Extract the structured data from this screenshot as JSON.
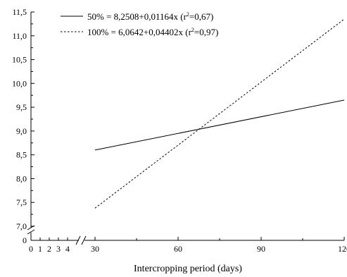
{
  "chart_data": {
    "type": "line",
    "xlabel": "Intercropping period (days)",
    "ylabel": "",
    "y_range_main": [
      7.0,
      11.5
    ],
    "y_range_broken": [
      0,
      0
    ],
    "x_range_main": [
      30,
      120
    ],
    "x_range_broken": [
      0,
      4
    ],
    "y_ticks_major": [
      "11,5",
      "11,0",
      "10,5",
      "10,0",
      "9,5",
      "9,0",
      "8,5",
      "8,0",
      "7,5",
      "7,0",
      "0"
    ],
    "y_tick_values": [
      11.5,
      11.0,
      10.5,
      10.0,
      9.5,
      9.0,
      8.5,
      8.0,
      7.5,
      7.0
    ],
    "x_ticks_broken": [
      "0",
      "1",
      "2",
      "3",
      "4"
    ],
    "x_ticks_main": [
      "30",
      "60",
      "90",
      "120"
    ],
    "x_tick_values_main": [
      30,
      60,
      90,
      120
    ],
    "grid": false,
    "legend_position": "top-left",
    "series": [
      {
        "name": "50%",
        "legend_main": "50% = 8,2508+0,01164x (r",
        "legend_sup": "2",
        "legend_tail": "=0,67)",
        "style": "solid",
        "intercept": 8.2508,
        "slope": 0.01164,
        "x": [
          30,
          120
        ],
        "y": [
          8.6,
          9.65
        ]
      },
      {
        "name": "100%",
        "legend_main": "100% = 6,0642+0,04402x (r",
        "legend_sup": "2",
        "legend_tail": "=0,97)",
        "style": "dashed",
        "intercept": 6.0642,
        "slope": 0.04402,
        "x": [
          30,
          120
        ],
        "y": [
          7.38,
          11.35
        ]
      }
    ]
  }
}
